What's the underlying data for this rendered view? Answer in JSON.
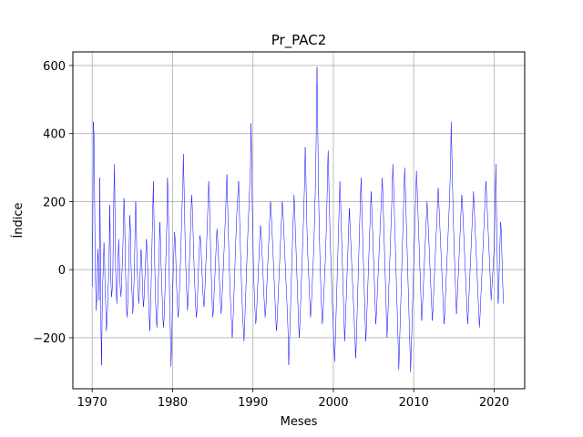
{
  "chart_data": {
    "type": "line",
    "title": "Pr_PAC2",
    "xlabel": "Meses",
    "ylabel": "Índice",
    "xlim": [
      1967.6,
      2023.8
    ],
    "ylim": [
      -350,
      640
    ],
    "xticks": [
      1970,
      1980,
      1990,
      2000,
      2010,
      2020
    ],
    "xtick_labels": [
      "1970",
      "1980",
      "1990",
      "2000",
      "2010",
      "2020"
    ],
    "yticks": [
      -200,
      0,
      200,
      400,
      600
    ],
    "ytick_labels": [
      "−200",
      "0",
      "200",
      "400",
      "600"
    ],
    "grid": true,
    "legend": "none",
    "colors": {
      "series": "#0000ff",
      "grid": "#b0b0b0",
      "axes": "#000000"
    },
    "series": [
      {
        "x_start": "1970-01",
        "x_end": "2021-03",
        "frequency": "monthly",
        "values": [
          -50,
          120,
          435,
          400,
          250,
          30,
          -60,
          -120,
          -80,
          20,
          60,
          -40,
          -90,
          270,
          60,
          -180,
          -280,
          -120,
          -40,
          10,
          80,
          40,
          -60,
          -100,
          -180,
          -160,
          -120,
          -60,
          -20,
          60,
          190,
          40,
          -40,
          -80,
          -60,
          -20,
          110,
          240,
          310,
          120,
          -10,
          -70,
          -100,
          -40,
          30,
          90,
          40,
          -30,
          -60,
          -80,
          -40,
          10,
          60,
          120,
          210,
          180,
          60,
          -30,
          -90,
          -140,
          -120,
          -60,
          10,
          80,
          160,
          120,
          20,
          -40,
          -80,
          -130,
          -100,
          -40,
          20,
          130,
          200,
          140,
          40,
          -20,
          -60,
          -100,
          -80,
          -30,
          10,
          60,
          50,
          -20,
          -70,
          -110,
          -90,
          -40,
          -10,
          40,
          90,
          70,
          20,
          -40,
          -90,
          -140,
          -180,
          -120,
          -60,
          20,
          100,
          180,
          260,
          160,
          40,
          -40,
          -100,
          -150,
          -170,
          -130,
          -60,
          0,
          70,
          140,
          90,
          20,
          -30,
          -80,
          -130,
          -170,
          -150,
          -100,
          -50,
          20,
          80,
          140,
          270,
          220,
          120,
          -20,
          -120,
          -200,
          -285,
          -220,
          -130,
          -60,
          10,
          60,
          110,
          90,
          40,
          -20,
          -70,
          -110,
          -140,
          -120,
          -80,
          -30,
          20,
          80,
          140,
          200,
          230,
          340,
          260,
          170,
          80,
          20,
          -40,
          -80,
          -120,
          -90,
          -40,
          10,
          60,
          110,
          170,
          220,
          190,
          140,
          80,
          20,
          -30,
          -70,
          -110,
          -140,
          -120,
          -80,
          -30,
          20,
          60,
          100,
          90,
          60,
          20,
          -20,
          -60,
          -90,
          -110,
          -80,
          -40,
          10,
          50,
          100,
          150,
          200,
          260,
          230,
          160,
          80,
          10,
          -50,
          -100,
          -140,
          -120,
          -80,
          -40,
          0,
          40,
          80,
          120,
          100,
          60,
          20,
          -20,
          -60,
          -100,
          -130,
          -110,
          -70,
          -30,
          10,
          50,
          90,
          140,
          180,
          240,
          280,
          210,
          140,
          70,
          10,
          -40,
          -90,
          -130,
          -160,
          -200,
          -170,
          -120,
          -70,
          -20,
          30,
          80,
          130,
          170,
          200,
          240,
          260,
          190,
          120,
          60,
          0,
          -50,
          -100,
          -140,
          -180,
          -210,
          -170,
          -120,
          -70,
          -20,
          30,
          80,
          130,
          170,
          210,
          260,
          300,
          430,
          320,
          200,
          100,
          20,
          -40,
          -90,
          -130,
          -160,
          -140,
          -100,
          -60,
          -20,
          20,
          60,
          100,
          130,
          110,
          80,
          40,
          0,
          -40,
          -80,
          -110,
          -140,
          -120,
          -80,
          -40,
          0,
          40,
          80,
          120,
          160,
          200,
          180,
          140,
          100,
          60,
          20,
          -20,
          -60,
          -100,
          -140,
          -180,
          -160,
          -120,
          -80,
          -40,
          0,
          40,
          80,
          120,
          160,
          200,
          180,
          140,
          100,
          60,
          20,
          -20,
          -60,
          -100,
          -140,
          -190,
          -280,
          -230,
          -180,
          -120,
          -60,
          0,
          60,
          120,
          170,
          220,
          180,
          130,
          80,
          30,
          -20,
          -70,
          -120,
          -170,
          -200,
          -160,
          -110,
          -60,
          -10,
          40,
          90,
          140,
          200,
          260,
          360,
          300,
          200,
          120,
          60,
          20,
          -20,
          -60,
          -100,
          -140,
          -120,
          -80,
          -40,
          0,
          40,
          90,
          150,
          220,
          300,
          440,
          595,
          460,
          320,
          200,
          110,
          40,
          -20,
          -70,
          -120,
          -160,
          -140,
          -100,
          -60,
          -20,
          20,
          70,
          130,
          200,
          290,
          350,
          270,
          190,
          120,
          60,
          10,
          -40,
          -90,
          -140,
          -180,
          -230,
          -270,
          -220,
          -160,
          -100,
          -40,
          20,
          80,
          140,
          200,
          260,
          210,
          150,
          90,
          30,
          -30,
          -90,
          -150,
          -210,
          -170,
          -120,
          -70,
          -20,
          30,
          80,
          130,
          180,
          140,
          100,
          60,
          20,
          -20,
          -60,
          -100,
          -140,
          -180,
          -220,
          -260,
          -200,
          -140,
          -80,
          -20,
          40,
          100,
          160,
          220,
          270,
          200,
          140,
          80,
          20,
          -40,
          -100,
          -160,
          -210,
          -170,
          -120,
          -70,
          -20,
          30,
          80,
          130,
          180,
          230,
          190,
          140,
          90,
          40,
          -10,
          -60,
          -110,
          -160,
          -130,
          -90,
          -50,
          -10,
          30,
          70,
          110,
          150,
          190,
          230,
          270,
          220,
          160,
          100,
          40,
          -20,
          -80,
          -140,
          -200,
          -160,
          -110,
          -60,
          -10,
          40,
          90,
          140,
          190,
          250,
          310,
          260,
          200,
          140,
          80,
          20,
          -40,
          -100,
          -160,
          -220,
          -295,
          -240,
          -180,
          -120,
          -60,
          0,
          60,
          120,
          180,
          240,
          300,
          250,
          190,
          130,
          70,
          10,
          -50,
          -110,
          -170,
          -230,
          -300,
          -250,
          -190,
          -130,
          -70,
          -10,
          50,
          110,
          170,
          230,
          290,
          250,
          200,
          150,
          100,
          50,
          0,
          -50,
          -100,
          -150,
          -120,
          -80,
          -40,
          0,
          40,
          80,
          120,
          160,
          200,
          170,
          130,
          90,
          50,
          10,
          -30,
          -70,
          -110,
          -150,
          -120,
          -80,
          -40,
          0,
          40,
          80,
          120,
          160,
          200,
          240,
          200,
          160,
          120,
          80,
          40,
          0,
          -40,
          -80,
          -120,
          -160,
          -130,
          -90,
          -50,
          -10,
          30,
          70,
          110,
          150,
          200,
          250,
          300,
          435,
          360,
          280,
          200,
          130,
          70,
          20,
          -30,
          -80,
          -130,
          -100,
          -60,
          -20,
          20,
          60,
          100,
          140,
          180,
          220,
          200,
          160,
          120,
          80,
          40,
          0,
          -40,
          -80,
          -120,
          -160,
          -130,
          -90,
          -50,
          -10,
          30,
          70,
          110,
          150,
          190,
          230,
          190,
          150,
          110,
          70,
          30,
          -10,
          -50,
          -90,
          -130,
          -170,
          -140,
          -100,
          -60,
          -20,
          20,
          60,
          100,
          140,
          180,
          220,
          260,
          230,
          190,
          150,
          110,
          70,
          30,
          -10,
          -50,
          -90,
          -60,
          -30,
          0,
          30,
          60,
          120,
          225,
          310,
          180,
          60,
          -40,
          -100,
          -60,
          20,
          80,
          140,
          120,
          60,
          0,
          -60,
          -100
        ]
      }
    ]
  }
}
